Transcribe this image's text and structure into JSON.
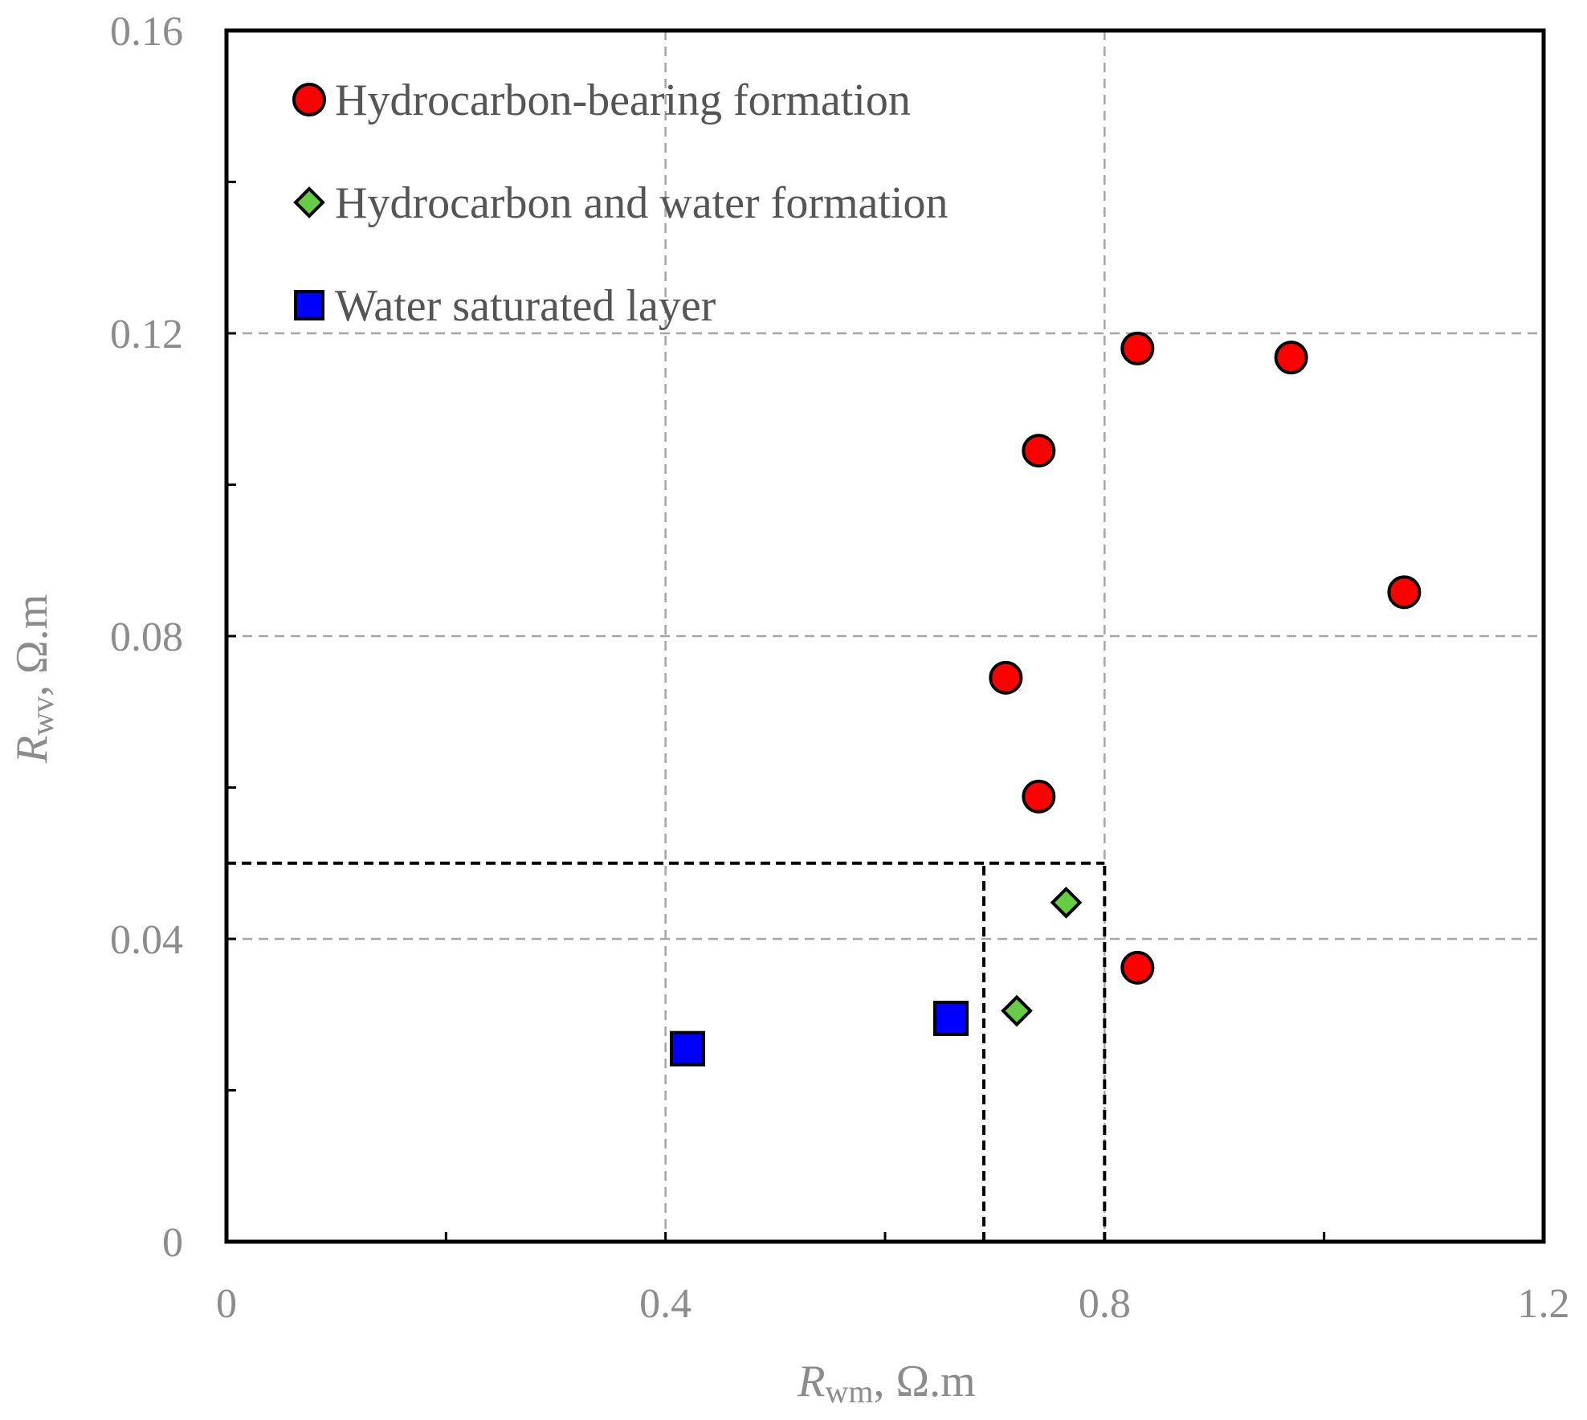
{
  "chart_data": {
    "type": "scatter",
    "title": "",
    "xlabel": {
      "main": "R",
      "sub": "wm",
      "unit": ", Ω.m"
    },
    "ylabel": {
      "main": "R",
      "sub": "wv",
      "unit": ", Ω.m"
    },
    "xlim": [
      0,
      1.2
    ],
    "ylim": [
      0,
      0.16
    ],
    "x_ticks": [
      0,
      0.4,
      0.8,
      1.2
    ],
    "y_ticks": [
      0,
      0.04,
      0.08,
      0.12,
      0.16
    ],
    "x_tick_labels": [
      "0",
      "0.4",
      "0.8",
      "1.2"
    ],
    "y_tick_labels": [
      "0",
      "0.04",
      "0.08",
      "0.12",
      "0.16"
    ],
    "x_minor_ticks": [
      0.2,
      0.6,
      1.0
    ],
    "y_minor_ticks": [
      0.02,
      0.06,
      0.1,
      0.14
    ],
    "grid": true,
    "legend_position": "top-left",
    "series": [
      {
        "name": "Hydrocarbon-bearing formation",
        "marker": "circle",
        "color": "#ff0000",
        "points": [
          {
            "x": 0.83,
            "y": 0.118
          },
          {
            "x": 0.97,
            "y": 0.1168
          },
          {
            "x": 0.74,
            "y": 0.1045
          },
          {
            "x": 1.073,
            "y": 0.0858
          },
          {
            "x": 0.71,
            "y": 0.0745
          },
          {
            "x": 0.74,
            "y": 0.0588
          },
          {
            "x": 0.83,
            "y": 0.0362
          }
        ]
      },
      {
        "name": "Hydrocarbon and water formation",
        "marker": "diamond",
        "color": "#66cc44",
        "points": [
          {
            "x": 0.765,
            "y": 0.0448
          },
          {
            "x": 0.72,
            "y": 0.0305
          }
        ]
      },
      {
        "name": "Water saturated layer",
        "marker": "square",
        "color": "#0000ff",
        "points": [
          {
            "x": 0.42,
            "y": 0.0255
          },
          {
            "x": 0.66,
            "y": 0.0295
          }
        ]
      }
    ],
    "annotations": {
      "dashed_cutoff_lines": [
        {
          "from": [
            0,
            0.05
          ],
          "to": [
            0.8,
            0.05
          ]
        },
        {
          "from": [
            0.69,
            0
          ],
          "to": [
            0.69,
            0.05
          ]
        },
        {
          "from": [
            0.8,
            0
          ],
          "to": [
            0.8,
            0.05
          ]
        }
      ]
    }
  },
  "colors": {
    "axis": "#000000",
    "grid": "#a6a6a6",
    "tick_label": "#8c8c8c",
    "legend_text": "#555555"
  }
}
